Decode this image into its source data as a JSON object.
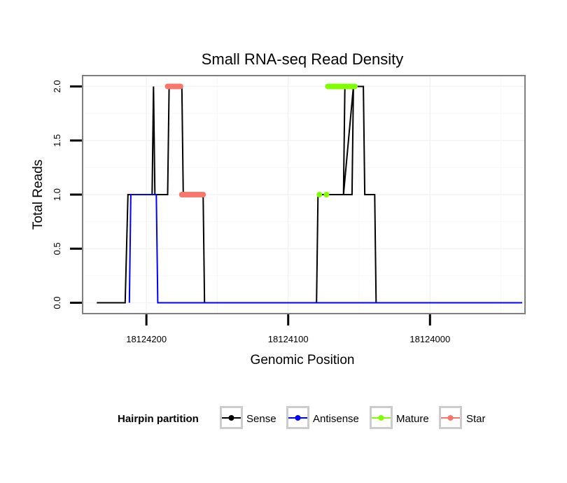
{
  "chart_data": {
    "type": "line",
    "title": "Small RNA-seq Read Density",
    "xlabel": "Genomic Position",
    "ylabel": "Total Reads",
    "x_reversed": true,
    "xlim": [
      18123933,
      18124245
    ],
    "ylim": [
      -0.1,
      2.1
    ],
    "xticks": [
      18124200,
      18124100,
      18124000
    ],
    "xtick_labels": [
      "18124200",
      "18124100",
      "18124000"
    ],
    "yticks": [
      0.0,
      0.5,
      1.0,
      1.5,
      2.0
    ],
    "ytick_labels": [
      "0.0",
      "0.5",
      "1.0",
      "1.5",
      "2.0"
    ],
    "grid": true,
    "legend": {
      "title": "Hairpin partition",
      "position": "bottom",
      "entries": [
        {
          "name": "Sense",
          "color": "#000000"
        },
        {
          "name": "Antisense",
          "color": "#0000ff"
        },
        {
          "name": "Mature",
          "color": "#7fff00"
        },
        {
          "name": "Star",
          "color": "#f8766d"
        }
      ]
    },
    "series": [
      {
        "name": "Sense",
        "color": "#000000",
        "x": [
          18124235,
          18124215,
          18124213,
          18124196,
          18124195,
          18124194,
          18124193,
          18124185,
          18124184,
          18124175,
          18124174,
          18124160,
          18124159,
          18124080,
          18124079,
          18124055,
          18124054,
          18124061,
          18124060,
          18124047,
          18124046,
          18124039,
          18124038,
          18124030,
          18124029,
          18123935
        ],
        "y": [
          0,
          0,
          1,
          1,
          2,
          1,
          1,
          1,
          2,
          2,
          1,
          1,
          0,
          0,
          1,
          1,
          2,
          1,
          2,
          2,
          1,
          1,
          0,
          0,
          0,
          0
        ]
      },
      {
        "name": "Antisense",
        "color": "#0000ff",
        "x": [
          18124212,
          18124211,
          18124193,
          18124192,
          18124160,
          18124159,
          18124065,
          18124064,
          18124039,
          18124038,
          18123935
        ],
        "y": [
          0,
          1,
          1,
          0,
          0,
          0,
          0,
          0,
          0,
          0,
          0
        ]
      },
      {
        "name": "Mature",
        "color": "#7fff00",
        "x": [
          18124078,
          18124073,
          18124072,
          18124071,
          18124070,
          18124069,
          18124068,
          18124067,
          18124066,
          18124065,
          18124064,
          18124063,
          18124062,
          18124061,
          18124060,
          18124059,
          18124058,
          18124057,
          18124056,
          18124055,
          18124054,
          18124053
        ],
        "y": [
          1,
          1,
          2,
          2,
          2,
          2,
          2,
          2,
          2,
          2,
          2,
          2,
          2,
          2,
          2,
          2,
          2,
          2,
          2,
          2,
          2,
          2
        ]
      },
      {
        "name": "Star",
        "color": "#f8766d",
        "x": [
          18124185,
          18124184,
          18124183,
          18124182,
          18124181,
          18124180,
          18124179,
          18124178,
          18124177,
          18124176,
          18124175,
          18124174,
          18124173,
          18124172,
          18124171,
          18124170,
          18124169,
          18124168,
          18124167,
          18124166,
          18124165,
          18124164,
          18124163,
          18124162,
          18124161,
          18124160
        ],
        "y": [
          2,
          2,
          2,
          2,
          2,
          2,
          2,
          2,
          2,
          2,
          1,
          1,
          1,
          1,
          1,
          1,
          1,
          1,
          1,
          1,
          1,
          1,
          1,
          1,
          1,
          1
        ]
      }
    ]
  }
}
